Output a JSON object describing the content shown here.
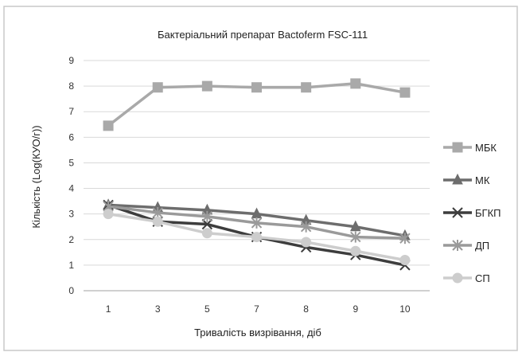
{
  "chart_data": {
    "type": "line",
    "title": "Бактеріальний препарат Bactoferm FSC-111",
    "xlabel": "Тривалість визрівання, діб",
    "ylabel": "Кількість (Log(КУО/г))",
    "categories": [
      "1",
      "3",
      "5",
      "7",
      "8",
      "9",
      "10"
    ],
    "ylim": [
      0,
      9
    ],
    "yticks": [
      "0",
      "1",
      "2",
      "3",
      "4",
      "5",
      "6",
      "7",
      "8",
      "9"
    ],
    "grid": "horizontal",
    "legend_position": "right",
    "series": [
      {
        "name": "МБК",
        "marker": "square",
        "color": "#a9a9a9",
        "values": [
          6.45,
          7.95,
          8.0,
          7.95,
          7.95,
          8.1,
          7.75
        ]
      },
      {
        "name": "МК",
        "marker": "triangle",
        "color": "#6d6d6d",
        "values": [
          3.35,
          3.25,
          3.15,
          3.0,
          2.75,
          2.5,
          2.15
        ]
      },
      {
        "name": "БГКП",
        "marker": "x",
        "color": "#3d3d3d",
        "values": [
          3.35,
          2.7,
          2.6,
          2.1,
          1.7,
          1.4,
          1.0
        ]
      },
      {
        "name": "ДП",
        "marker": "star",
        "color": "#9a9a9a",
        "values": [
          3.3,
          3.05,
          2.9,
          2.65,
          2.5,
          2.1,
          2.05
        ]
      },
      {
        "name": "СП",
        "marker": "circle",
        "color": "#cdcdcd",
        "values": [
          3.0,
          2.7,
          2.25,
          2.1,
          1.9,
          1.55,
          1.2
        ]
      }
    ]
  }
}
